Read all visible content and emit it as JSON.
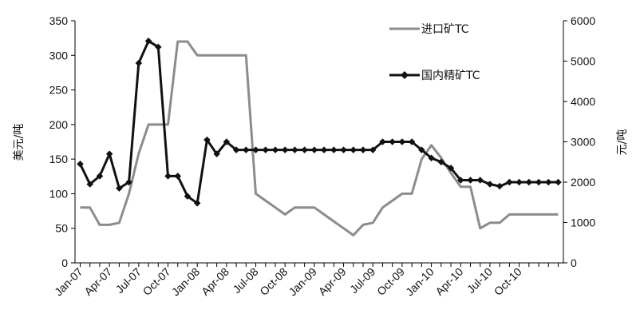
{
  "chart_data": {
    "type": "line",
    "title": "",
    "x": [
      "Jan-07",
      "Feb-07",
      "Mar-07",
      "Apr-07",
      "May-07",
      "Jun-07",
      "Jul-07",
      "Aug-07",
      "Sep-07",
      "Oct-07",
      "Nov-07",
      "Dec-07",
      "Jan-08",
      "Feb-08",
      "Mar-08",
      "Apr-08",
      "May-08",
      "Jun-08",
      "Jul-08",
      "Aug-08",
      "Sep-08",
      "Oct-08",
      "Nov-08",
      "Dec-08",
      "Jan-09",
      "Feb-09",
      "Mar-09",
      "Apr-09",
      "May-09",
      "Jun-09",
      "Jul-09",
      "Aug-09",
      "Sep-09",
      "Oct-09",
      "Nov-09",
      "Dec-09",
      "Jan-10",
      "Feb-10",
      "Mar-10",
      "Apr-10",
      "May-10",
      "Jun-10",
      "Jul-10",
      "Aug-10",
      "Sep-10",
      "Oct-10",
      "Nov-10",
      "Dec-10",
      "Jan-11",
      "Feb-11"
    ],
    "x_tick_labels": [
      "Jan-07",
      "Apr-07",
      "Jul-07",
      "Oct-07",
      "Jan-08",
      "Apr-08",
      "Jul-08",
      "Oct-08",
      "Jan-09",
      "Apr-09",
      "Jul-09",
      "Oct-09",
      "Jan-10",
      "Apr-10",
      "Jul-10",
      "Oct-10"
    ],
    "ylabel_left": "美元/吨",
    "ylabel_right": "元/吨",
    "ylim_left": [
      0,
      350
    ],
    "ylim_right": [
      0,
      6000
    ],
    "yticks_left": [
      "0",
      "50",
      "100",
      "150",
      "200",
      "250",
      "300",
      "350"
    ],
    "yticks_right": [
      "0",
      "1000",
      "2000",
      "3000",
      "4000",
      "5000",
      "6000"
    ],
    "grid": false,
    "legend_position": "top-right",
    "series": [
      {
        "name": "进口矿TC",
        "axis": "left",
        "color": "#8c8c8c",
        "marker": "none",
        "values": [
          80,
          80,
          55,
          55,
          58,
          100,
          158,
          200,
          200,
          200,
          320,
          320,
          300,
          300,
          300,
          300,
          300,
          300,
          100,
          90,
          80,
          70,
          80,
          80,
          80,
          70,
          60,
          50,
          40,
          55,
          58,
          80,
          90,
          100,
          100,
          150,
          170,
          152,
          130,
          110,
          110,
          50,
          58,
          58,
          70,
          70,
          70,
          70,
          70,
          70
        ]
      },
      {
        "name": "国内精矿TC",
        "axis": "right",
        "color": "#111111",
        "marker": "diamond",
        "values": [
          2450,
          1950,
          2150,
          2700,
          1850,
          2000,
          4950,
          5500,
          5350,
          2150,
          2150,
          1650,
          1480,
          3050,
          2700,
          3000,
          2800,
          2800,
          2800,
          2800,
          2800,
          2800,
          2800,
          2800,
          2800,
          2800,
          2800,
          2800,
          2800,
          2800,
          2800,
          3000,
          3000,
          3000,
          3000,
          2800,
          2600,
          2500,
          2350,
          2050,
          2050,
          2050,
          1950,
          1900,
          2000,
          2000,
          2000,
          2000,
          2000,
          2000
        ]
      }
    ]
  }
}
